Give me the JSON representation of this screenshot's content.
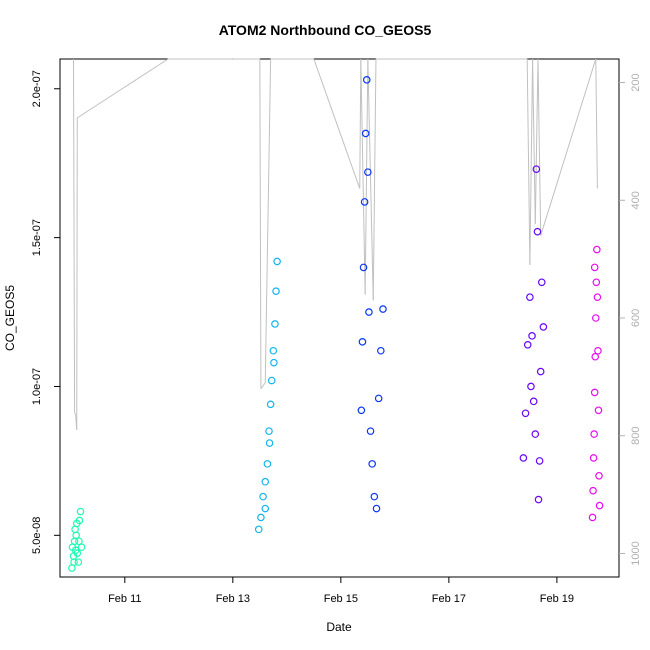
{
  "chart_data": {
    "type": "scatter",
    "title": "ATOM2 Northbound CO_GEOS5",
    "xlabel": "Date",
    "ylabel": "CO_GEOS5",
    "x_unit": "day of month (February)",
    "xlim": [
      9.8,
      20.15
    ],
    "ylim": [
      3.6e-08,
      2.1e-07
    ],
    "x_ticks": [
      {
        "value": 11,
        "label": "Feb 11"
      },
      {
        "value": 13,
        "label": "Feb 13"
      },
      {
        "value": 15,
        "label": "Feb 15"
      },
      {
        "value": 17,
        "label": "Feb 17"
      },
      {
        "value": 19,
        "label": "Feb 19"
      }
    ],
    "y_ticks": [
      {
        "value": 5e-08,
        "label": "5.0e-08"
      },
      {
        "value": 1e-07,
        "label": "1.0e-07"
      },
      {
        "value": 1.5e-07,
        "label": "1.5e-07"
      },
      {
        "value": 2e-07,
        "label": "2.0e-07"
      }
    ],
    "y2_label": "",
    "y2_lim_top_to_bottom": [
      160,
      1040
    ],
    "y2_ticks": [
      200,
      400,
      600,
      800,
      1000
    ],
    "grid": false,
    "legend": "none",
    "series": [
      {
        "color": "#1dfcb0",
        "points": [
          [
            10.02,
            3.9e-08
          ],
          [
            10.05,
            4.3e-08
          ],
          [
            10.07,
            4.8e-08
          ],
          [
            10.08,
            5.2e-08
          ],
          [
            10.1,
            5e-08
          ],
          [
            10.12,
            4.4e-08
          ],
          [
            10.14,
            4.1e-08
          ],
          [
            10.16,
            5.5e-08
          ],
          [
            10.18,
            5.8e-08
          ],
          [
            10.2,
            4.6e-08
          ],
          [
            10.03,
            4.6e-08
          ],
          [
            10.06,
            4.1e-08
          ],
          [
            10.09,
            4.5e-08
          ],
          [
            10.11,
            5.4e-08
          ],
          [
            10.15,
            4.8e-08
          ]
        ]
      },
      {
        "color": "#14b4ee",
        "points": [
          [
            13.48,
            5.2e-08
          ],
          [
            13.52,
            5.6e-08
          ],
          [
            13.56,
            6.3e-08
          ],
          [
            13.6,
            6.8e-08
          ],
          [
            13.64,
            7.4e-08
          ],
          [
            13.67,
            8.5e-08
          ],
          [
            13.7,
            9.4e-08
          ],
          [
            13.72,
            1.02e-07
          ],
          [
            13.75,
            1.12e-07
          ],
          [
            13.78,
            1.21e-07
          ],
          [
            13.8,
            1.32e-07
          ],
          [
            13.82,
            1.42e-07
          ],
          [
            13.6,
            5.9e-08
          ],
          [
            13.68,
            8.1e-08
          ],
          [
            13.76,
            1.08e-07
          ]
        ]
      },
      {
        "color": "#0a36f4",
        "points": [
          [
            15.38,
            9.2e-08
          ],
          [
            15.4,
            1.15e-07
          ],
          [
            15.42,
            1.4e-07
          ],
          [
            15.44,
            1.62e-07
          ],
          [
            15.46,
            1.85e-07
          ],
          [
            15.48,
            2.03e-07
          ],
          [
            15.5,
            1.72e-07
          ],
          [
            15.52,
            1.25e-07
          ],
          [
            15.55,
            8.5e-08
          ],
          [
            15.58,
            7.4e-08
          ],
          [
            15.62,
            6.3e-08
          ],
          [
            15.66,
            5.9e-08
          ],
          [
            15.7,
            9.6e-08
          ],
          [
            15.74,
            1.12e-07
          ],
          [
            15.78,
            1.26e-07
          ]
        ]
      },
      {
        "color": "#6806f6",
        "points": [
          [
            18.38,
            7.6e-08
          ],
          [
            18.42,
            9.1e-08
          ],
          [
            18.46,
            1.14e-07
          ],
          [
            18.5,
            1.3e-07
          ],
          [
            18.54,
            1.17e-07
          ],
          [
            18.57,
            9.5e-08
          ],
          [
            18.6,
            8.4e-08
          ],
          [
            18.62,
            1.73e-07
          ],
          [
            18.64,
            1.52e-07
          ],
          [
            18.66,
            6.2e-08
          ],
          [
            18.68,
            7.5e-08
          ],
          [
            18.7,
            1.05e-07
          ],
          [
            18.72,
            1.35e-07
          ],
          [
            18.75,
            1.2e-07
          ],
          [
            18.52,
            1e-07
          ]
        ]
      },
      {
        "color": "#e80cf0",
        "points": [
          [
            19.66,
            5.6e-08
          ],
          [
            19.67,
            6.5e-08
          ],
          [
            19.68,
            7.6e-08
          ],
          [
            19.69,
            8.4e-08
          ],
          [
            19.7,
            9.8e-08
          ],
          [
            19.71,
            1.1e-07
          ],
          [
            19.72,
            1.23e-07
          ],
          [
            19.73,
            1.35e-07
          ],
          [
            19.74,
            1.46e-07
          ],
          [
            19.75,
            1.3e-07
          ],
          [
            19.76,
            1.12e-07
          ],
          [
            19.77,
            9.2e-08
          ],
          [
            19.78,
            7e-08
          ],
          [
            19.79,
            6e-08
          ],
          [
            19.7,
            1.4e-07
          ]
        ]
      }
    ],
    "profile_series": {
      "color": "#c0c0c0",
      "axis": "right",
      "points": [
        [
          10.05,
          150
        ],
        [
          10.07,
          760
        ],
        [
          10.09,
          765
        ],
        [
          10.11,
          790
        ],
        [
          10.12,
          260
        ],
        [
          11.8,
          150
        ],
        [
          13.0,
          150
        ],
        [
          13.5,
          150
        ],
        [
          13.52,
          720
        ],
        [
          13.6,
          710
        ],
        [
          13.7,
          150
        ],
        [
          14.5,
          150
        ],
        [
          15.35,
          380
        ],
        [
          15.37,
          150
        ],
        [
          15.45,
          560
        ],
        [
          15.5,
          150
        ],
        [
          15.6,
          570
        ],
        [
          15.65,
          150
        ],
        [
          18.45,
          150
        ],
        [
          18.5,
          510
        ],
        [
          18.55,
          150
        ],
        [
          18.6,
          440
        ],
        [
          18.65,
          150
        ],
        [
          18.7,
          460
        ],
        [
          19.72,
          150
        ],
        [
          19.75,
          380
        ]
      ]
    }
  }
}
